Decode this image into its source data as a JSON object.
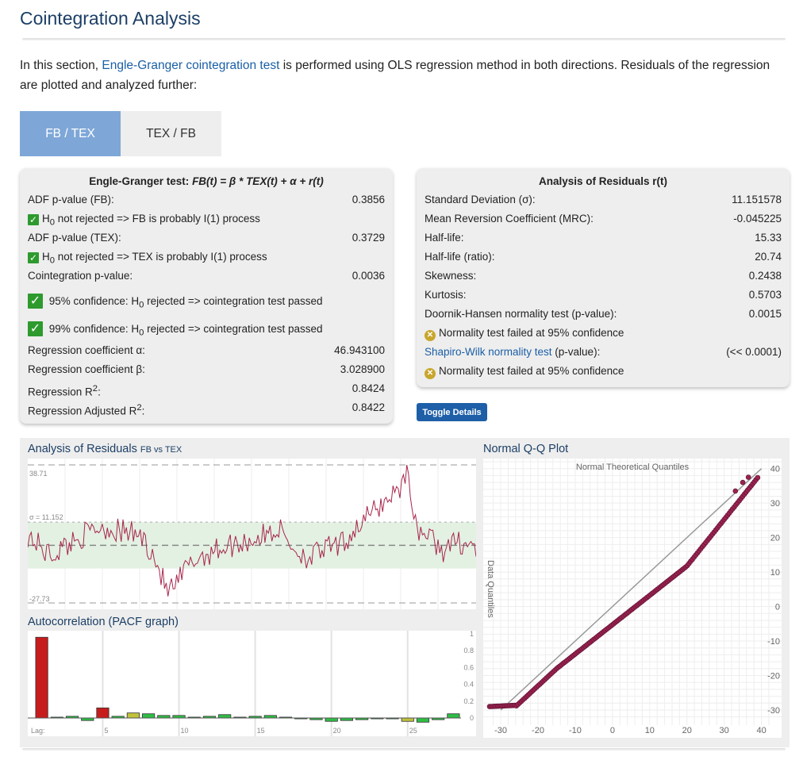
{
  "page": {
    "title": "Cointegration Analysis",
    "intro_before": "In this section, ",
    "intro_link": "Engle-Granger cointegration test",
    "intro_after": " is performed using OLS regression method in both directions. Residuals of the regression are plotted and analyzed further:"
  },
  "tabs": [
    {
      "label": "FB / TEX",
      "active": true
    },
    {
      "label": "TEX / FB",
      "active": false
    }
  ],
  "engle": {
    "title_prefix": "Engle-Granger test: ",
    "title_formula": "FB(t) = β * TEX(t) + α + r(t)",
    "adf_fb_label": "ADF p-value (FB):",
    "adf_fb_value": "0.3856",
    "fb_note": "not rejected => FB is probably I(1) process",
    "adf_tex_label": "ADF p-value (TEX):",
    "adf_tex_value": "0.3729",
    "tex_note": "not rejected => TEX is probably I(1) process",
    "coint_label": "Cointegration p-value:",
    "coint_value": "0.0036",
    "conf95_prefix": "95% confidence: ",
    "conf95_suffix": "rejected => cointegration test passed",
    "conf99_prefix": "99% confidence: ",
    "conf99_suffix": "rejected => cointegration test passed",
    "alpha_label": "Regression coefficient α:",
    "alpha_value": "46.943100",
    "beta_label": "Regression coefficient β:",
    "beta_value": "3.028900",
    "r2_label": "Regression R",
    "r2_value": "0.8424",
    "adjr2_label": "Regression Adjusted R",
    "adjr2_value": "0.8422",
    "h0": "H",
    "h0_sub": "0",
    "sup2": "2",
    "colon": ":"
  },
  "residuals": {
    "title": "Analysis of Residuals r(t)",
    "std_label": "Standard Deviation (σ):",
    "std_value": "11.151578",
    "mrc_label": "Mean Reversion Coefficient (MRC):",
    "mrc_value": "-0.045225",
    "hl_label": "Half-life:",
    "hl_value": "15.33",
    "hlr_label": "Half-life (ratio):",
    "hlr_value": "20.74",
    "skew_label": "Skewness:",
    "skew_value": "0.2438",
    "kurt_label": "Kurtosis:",
    "kurt_value": "0.5703",
    "dh_label": "Doornik-Hansen normality test (p-value):",
    "dh_value": "0.0015",
    "dh_note": "Normality test failed at 95% confidence",
    "sw_link": "Shapiro-Wilk normality test",
    "sw_label": " (p-value):",
    "sw_value": "(<< 0.0001)",
    "sw_note": "Normality test failed at 95% confidence"
  },
  "toggle_label": "Toggle Details",
  "charts": {
    "resid_title": "Analysis of Residuals",
    "resid_subtitle": "FB vs TEX",
    "resid_top_label": "38.71",
    "resid_sigma_label": "σ = 11.152",
    "resid_bottom_label": "-27.73",
    "pacf_title": "Autocorrelation (PACF graph)",
    "pacf_lag_label": "Lag:",
    "pacf_x_ticks": [
      "5",
      "10",
      "15",
      "20",
      "25"
    ],
    "pacf_y_ticks": [
      "1",
      "0.8",
      "0.6",
      "0.4",
      "0.2",
      "0"
    ],
    "qq_title": "Normal Q-Q Plot",
    "qq_xlabel": "Normal Theoretical Quantiles",
    "qq_ylabel": "Data Quantiles",
    "qq_x_ticks": [
      "-30",
      "-20",
      "-10",
      "0",
      "10",
      "20",
      "30",
      "40"
    ],
    "qq_y_ticks": [
      "40",
      "30",
      "20",
      "10",
      "0",
      "-10",
      "-20",
      "-30"
    ]
  },
  "chart_data": [
    {
      "type": "line",
      "title": "Analysis of Residuals",
      "subtitle": "FB vs TEX",
      "ylim": [
        -27.73,
        38.71
      ],
      "sigma": 11.152,
      "points": 260
    },
    {
      "type": "bar",
      "title": "Autocorrelation (PACF graph)",
      "xlabel": "Lag:",
      "ylim": [
        0,
        1
      ],
      "lags": [
        1,
        2,
        3,
        4,
        5,
        6,
        7,
        8,
        9,
        10,
        11,
        12,
        13,
        14,
        15,
        16,
        17,
        18,
        19,
        20,
        21,
        22,
        23,
        24,
        25,
        26,
        27,
        28
      ],
      "values": [
        0.96,
        0.01,
        0.02,
        -0.03,
        0.12,
        0.02,
        0.06,
        0.05,
        0.03,
        0.03,
        0.01,
        0.02,
        0.04,
        0.01,
        0.02,
        0.03,
        0.01,
        -0.01,
        -0.02,
        -0.04,
        -0.03,
        -0.02,
        -0.01,
        -0.01,
        -0.04,
        -0.05,
        -0.02,
        0.05
      ],
      "colors": [
        "red",
        "green",
        "green",
        "green",
        "red",
        "green",
        "olive",
        "green",
        "green",
        "green",
        "green",
        "green",
        "green",
        "green",
        "green",
        "green",
        "green",
        "green",
        "green",
        "green",
        "green",
        "green",
        "green",
        "green",
        "olive",
        "green",
        "green",
        "green"
      ]
    },
    {
      "type": "scatter",
      "title": "Normal Q-Q Plot",
      "xlabel": "Normal Theoretical Quantiles",
      "ylabel": "Data Quantiles",
      "xlim": [
        -33,
        42
      ],
      "ylim": [
        -33,
        42
      ]
    }
  ]
}
